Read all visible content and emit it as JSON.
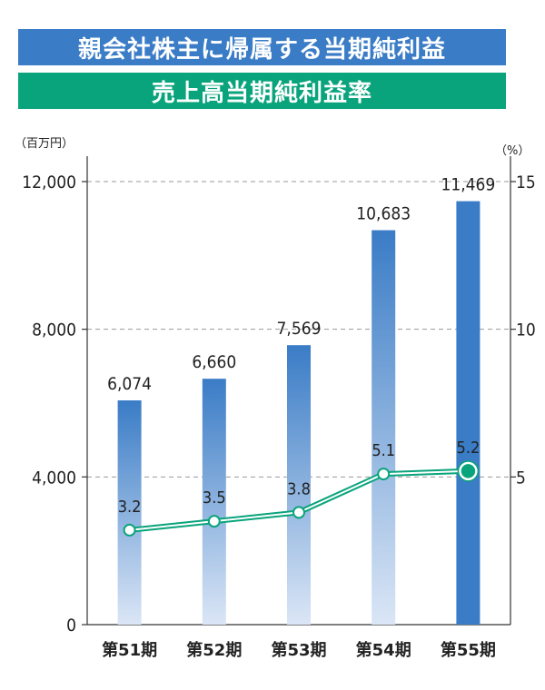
{
  "titles": {
    "main": "親会社株主に帰属する当期純利益",
    "sub": "売上高当期純利益率",
    "main_color": "#3a7cc6",
    "sub_color": "#0aa47c"
  },
  "chart_data": {
    "type": "bar+line",
    "categories": [
      "第51期",
      "第52期",
      "第53期",
      "第54期",
      "第55期"
    ],
    "highlight_category": "第55期",
    "left_axis": {
      "unit": "（百万円）",
      "ylim": [
        0,
        12000
      ],
      "ticks": [
        0,
        4000,
        8000,
        12000
      ],
      "tick_labels": [
        "0",
        "4,000",
        "8,000",
        "12,000"
      ]
    },
    "right_axis": {
      "unit": "（%）",
      "ylim": [
        0,
        15
      ],
      "ticks": [
        5,
        10,
        15
      ],
      "tick_labels": [
        "5",
        "10",
        "15"
      ]
    },
    "bar_series": {
      "values": [
        6074,
        6660,
        7569,
        10683,
        11469
      ],
      "labels": [
        "6,074",
        "6,660",
        "7,569",
        "10,683",
        "11,469"
      ],
      "color": "#3a7cc6",
      "gradient_end_color": "#dbe6f6"
    },
    "line_series": {
      "values": [
        3.2,
        3.5,
        3.8,
        5.1,
        5.2
      ],
      "labels": [
        "3.2",
        "3.5",
        "3.8",
        "5.1",
        "5.2"
      ],
      "color": "#0aa47c"
    },
    "grid": "dashed",
    "legend": "none"
  }
}
